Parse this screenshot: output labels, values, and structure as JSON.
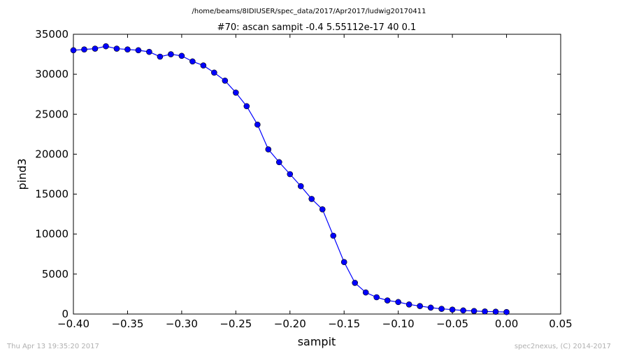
{
  "suptitle": "/home/beams/8IDIUSER/spec_data/2017/Apr2017/ludwig20170411",
  "footer_left": "Thu Apr 13 19:35:20 2017",
  "footer_right": "spec2nexus, (C) 2014-2017",
  "chart_data": {
    "type": "line",
    "title": "#70: ascan  sampit -0.4 5.55112e-17  40 0.1",
    "xlabel": "sampit",
    "ylabel": "pind3",
    "xlim": [
      -0.4,
      0.05
    ],
    "ylim": [
      0,
      35000
    ],
    "xticks": [
      "−0.40",
      "−0.35",
      "−0.30",
      "−0.25",
      "−0.20",
      "−0.15",
      "−0.10",
      "−0.05",
      "0.00",
      "0.05"
    ],
    "xtick_values": [
      -0.4,
      -0.35,
      -0.3,
      -0.25,
      -0.2,
      -0.15,
      -0.1,
      -0.05,
      0.0,
      0.05
    ],
    "yticks": [
      "0",
      "5000",
      "10000",
      "15000",
      "20000",
      "25000",
      "30000",
      "35000"
    ],
    "ytick_values": [
      0,
      5000,
      10000,
      15000,
      20000,
      25000,
      30000,
      35000
    ],
    "grid": false,
    "color": "#0000ff",
    "series": [
      {
        "x": [
          -0.4,
          -0.39,
          -0.38,
          -0.37,
          -0.36,
          -0.35,
          -0.34,
          -0.33,
          -0.32,
          -0.31,
          -0.3,
          -0.29,
          -0.28,
          -0.27,
          -0.26,
          -0.25,
          -0.24,
          -0.23,
          -0.22,
          -0.21,
          -0.2,
          -0.19,
          -0.18,
          -0.17,
          -0.16,
          -0.15,
          -0.14,
          -0.13,
          -0.12,
          -0.11,
          -0.1,
          -0.09,
          -0.08,
          -0.07,
          -0.06,
          -0.05,
          -0.04,
          -0.03,
          -0.02,
          -0.01,
          0.0
        ],
        "values": [
          33000,
          33100,
          33200,
          33500,
          33200,
          33100,
          33000,
          32800,
          32200,
          32500,
          32300,
          31600,
          31100,
          30200,
          29200,
          27700,
          26000,
          23700,
          20600,
          19000,
          17500,
          16000,
          14400,
          13100,
          9800,
          6500,
          3900,
          2700,
          2100,
          1700,
          1500,
          1200,
          1000,
          800,
          650,
          550,
          450,
          380,
          320,
          290,
          250
        ]
      }
    ]
  }
}
